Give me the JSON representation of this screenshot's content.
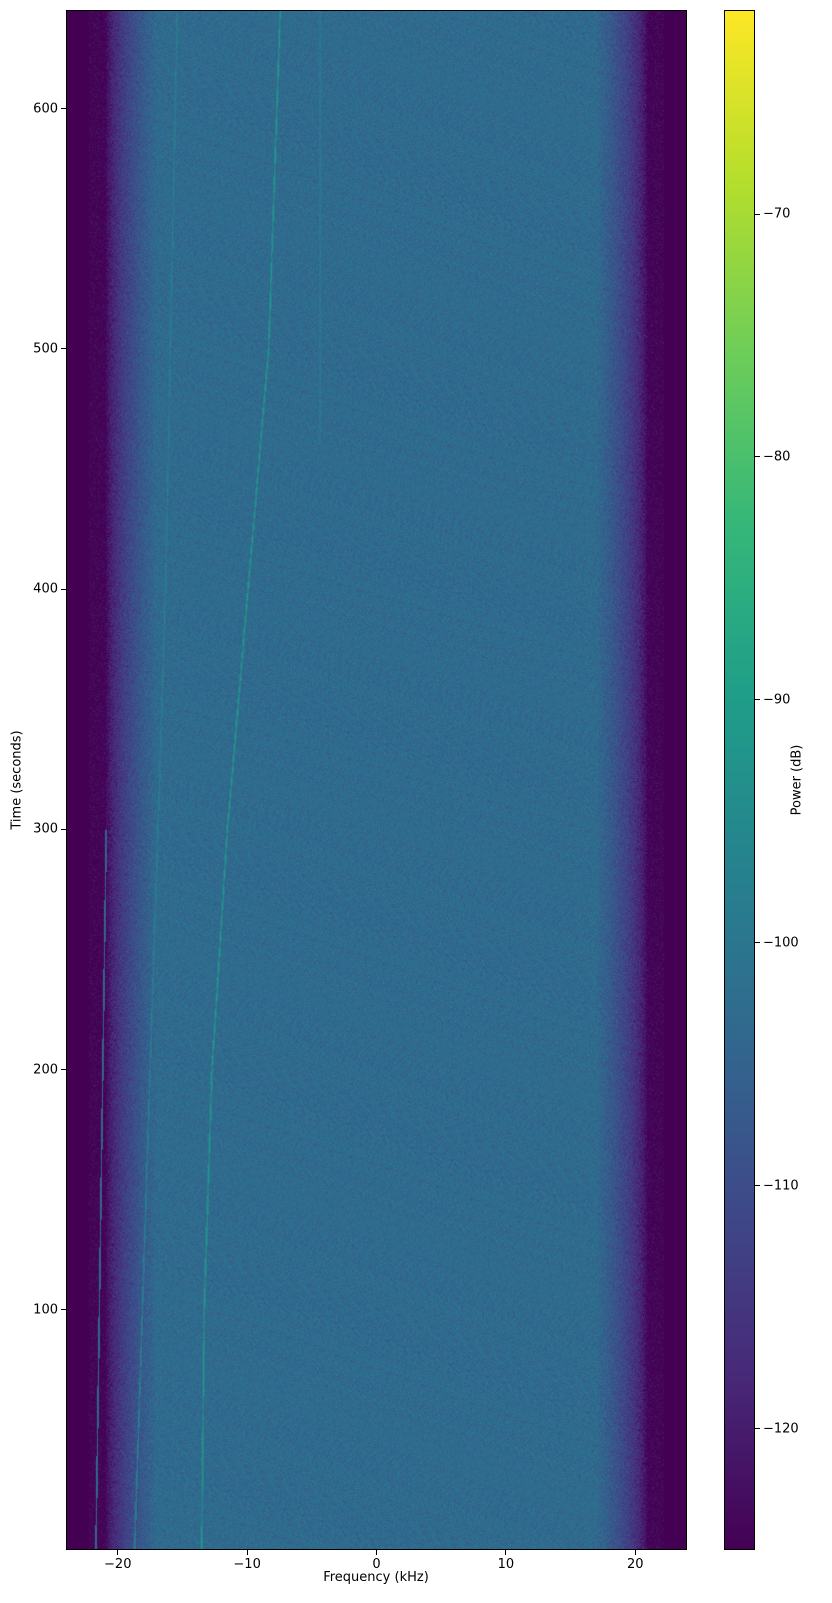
{
  "chart_data": {
    "type": "heatmap",
    "subtype": "spectrogram",
    "title": "",
    "xlabel": "Frequency (kHz)",
    "ylabel": "Time (seconds)",
    "xlim": [
      -24,
      24
    ],
    "ylim": [
      0,
      641
    ],
    "xticks": [
      -20,
      -10,
      0,
      10,
      20
    ],
    "xtick_labels": [
      "−20",
      "−10",
      "0",
      "10",
      "20"
    ],
    "yticks": [
      100,
      200,
      300,
      400,
      500,
      600
    ],
    "ytick_labels": [
      "100",
      "200",
      "300",
      "400",
      "500",
      "600"
    ],
    "grid": false,
    "colormap": "viridis",
    "colorbar": {
      "label": "Power (dB)",
      "range": [
        -125,
        -61.6
      ],
      "ticks": [
        -70,
        -80,
        -90,
        -100,
        -110,
        -120
      ],
      "tick_labels": [
        "−70",
        "−80",
        "−90",
        "−100",
        "−110",
        "−120"
      ]
    },
    "noise_floor_db": -103,
    "band_edge_db": -125,
    "passband_khz": [
      -21,
      21
    ],
    "signal_traces": [
      {
        "points": [
          [
            -13.6,
            0
          ],
          [
            -13.4,
            100
          ],
          [
            -12.8,
            200
          ],
          [
            -11.6,
            300
          ],
          [
            -10.0,
            400
          ],
          [
            -8.4,
            500
          ],
          [
            -7.5,
            641
          ]
        ],
        "level_db": -93
      },
      {
        "points": [
          [
            -18.8,
            0
          ],
          [
            -17.6,
            200
          ],
          [
            -16.4,
            400
          ],
          [
            -15.5,
            641
          ]
        ],
        "level_db": -99
      },
      {
        "points": [
          [
            -4.4,
            460
          ],
          [
            -4.4,
            641
          ]
        ],
        "level_db": -100
      },
      {
        "points": [
          [
            -21.8,
            0
          ],
          [
            -21.0,
            300
          ]
        ],
        "level_db": -104
      }
    ]
  }
}
